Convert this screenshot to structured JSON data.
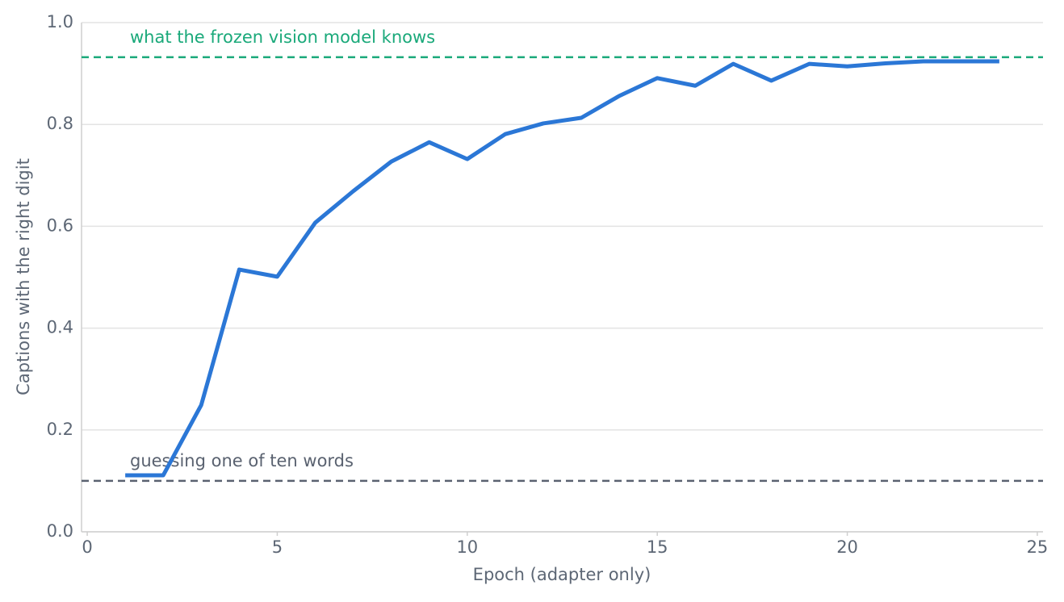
{
  "chart_data": {
    "type": "line",
    "x_label": "Epoch (adapter only)",
    "y_label": "Captions with the right digit",
    "x": [
      1,
      2,
      3,
      4,
      5,
      6,
      7,
      8,
      9,
      10,
      11,
      12,
      13,
      14,
      15,
      16,
      17,
      18,
      19,
      20,
      21,
      22,
      23,
      24
    ],
    "values": [
      0.111,
      0.111,
      0.249,
      0.515,
      0.501,
      0.607,
      0.669,
      0.727,
      0.765,
      0.732,
      0.781,
      0.802,
      0.813,
      0.856,
      0.891,
      0.876,
      0.919,
      0.886,
      0.919,
      0.914,
      0.92,
      0.924,
      0.924,
      0.924
    ],
    "color": "#2b77d6",
    "xlim": [
      -0.15,
      25.15
    ],
    "xticks": [
      0,
      5,
      10,
      15,
      20,
      25
    ],
    "ylim": [
      0,
      1
    ],
    "yticks": [
      {
        "value": 0,
        "label": "0.0"
      },
      0.2,
      0.4,
      0.6,
      0.8,
      {
        "value": 1,
        "label": "1.0"
      }
    ],
    "grid": true,
    "reference_lines": [
      {
        "value": 0.932,
        "label": "what the frozen vision model knows",
        "color": "#1aa97a"
      },
      {
        "value": 0.1,
        "label": "guessing one of ten words",
        "color": "#5a6270"
      }
    ]
  }
}
